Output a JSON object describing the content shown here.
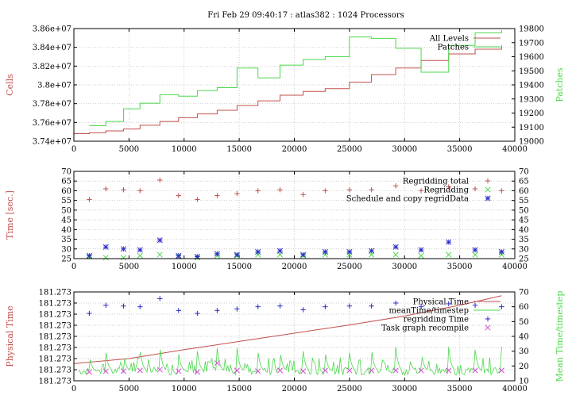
{
  "chart_data": [
    {
      "type": "line",
      "title": "Fri Feb 29 09:40:17 : atlas382 : 1024 Processors",
      "ylabel": "Cells",
      "y2label": "Patches",
      "xlim": [
        0,
        40000
      ],
      "ylim": [
        37400000,
        38600000
      ],
      "y2lim": [
        19000,
        19800
      ],
      "x_ticks": [
        0,
        5000,
        10000,
        15000,
        20000,
        25000,
        30000,
        35000,
        40000
      ],
      "y_ticks": [
        37400000,
        37600000,
        37800000,
        38000000,
        38200000,
        38400000,
        38600000
      ],
      "y_tick_labels": [
        "3.74e+07",
        "3.76e+07",
        "3.78e+07",
        "3.8e+07",
        "3.82e+07",
        "3.84e+07",
        "3.86e+07"
      ],
      "y2_ticks": [
        19000,
        19100,
        19200,
        19300,
        19400,
        19500,
        19600,
        19700,
        19800
      ],
      "legend_position": "top-right",
      "series": [
        {
          "name": "All Levels",
          "axis": "y",
          "color": "#c0504d",
          "step": true,
          "x": [
            0,
            1400,
            2900,
            4500,
            6000,
            7800,
            9500,
            11200,
            13000,
            14800,
            16700,
            18700,
            20800,
            22800,
            25000,
            27000,
            29200,
            31500,
            34000,
            36400,
            38800
          ],
          "y": [
            37480000,
            37490000,
            37510000,
            37530000,
            37570000,
            37610000,
            37650000,
            37690000,
            37730000,
            37780000,
            37830000,
            37890000,
            37930000,
            37960000,
            38030000,
            38110000,
            38180000,
            38260000,
            38330000,
            38380000,
            38420000
          ]
        },
        {
          "name": "Patches",
          "axis": "y2",
          "color": "#4cd84c",
          "step": true,
          "x": [
            1400,
            2900,
            4500,
            6000,
            7800,
            9500,
            11200,
            13000,
            14800,
            16700,
            18700,
            20800,
            22800,
            25000,
            27000,
            29200,
            31500,
            34000,
            36400,
            38800
          ],
          "y": [
            19110,
            19140,
            19230,
            19270,
            19330,
            19320,
            19360,
            19380,
            19520,
            19450,
            19540,
            19580,
            19600,
            19740,
            19730,
            19660,
            19490,
            19680,
            19770,
            19790
          ]
        }
      ]
    },
    {
      "type": "scatter",
      "ylabel": "Time [sec.]",
      "xlim": [
        0,
        40000
      ],
      "ylim": [
        25,
        70
      ],
      "x_ticks": [
        0,
        5000,
        10000,
        15000,
        20000,
        25000,
        30000,
        35000,
        40000
      ],
      "y_ticks": [
        25,
        30,
        35,
        40,
        45,
        50,
        55,
        60,
        65,
        70
      ],
      "legend_position": "top-right",
      "series": [
        {
          "name": "Regridding total",
          "marker": "plus",
          "color": "#c0504d",
          "x": [
            1400,
            2900,
            4500,
            6000,
            7800,
            9500,
            11200,
            13000,
            14800,
            16700,
            18700,
            20800,
            22800,
            25000,
            27000,
            29200,
            31500,
            34000,
            36400,
            38800
          ],
          "y": [
            55.5,
            61,
            60.5,
            60,
            65.5,
            57.5,
            55.5,
            57.5,
            58.5,
            60,
            60.5,
            58,
            60,
            60.5,
            60.5,
            62.5,
            60,
            62,
            61,
            60
          ]
        },
        {
          "name": "Regridding",
          "marker": "x",
          "color": "#4cd84c",
          "x": [
            1400,
            2900,
            4500,
            6000,
            7800,
            9500,
            11200,
            13000,
            14800,
            16700,
            18700,
            20800,
            22800,
            25000,
            27000,
            29200,
            31500,
            34000,
            36400,
            38800
          ],
          "y": [
            26,
            25.5,
            25.5,
            26.5,
            27,
            26,
            25.5,
            26.5,
            26.5,
            27,
            27,
            26.5,
            27,
            27,
            27,
            27,
            26.5,
            27,
            27,
            27
          ]
        },
        {
          "name": "Schedule and copy regridData",
          "marker": "star",
          "color": "#2c2ccc",
          "x": [
            1400,
            2900,
            4500,
            6000,
            7800,
            9500,
            11200,
            13000,
            14800,
            16700,
            18700,
            20800,
            22800,
            25000,
            27000,
            29200,
            31500,
            34000,
            36400,
            38800
          ],
          "y": [
            26.5,
            31,
            30,
            29.5,
            34.5,
            26.5,
            26,
            27.5,
            27,
            28.5,
            29,
            27,
            28.5,
            28.5,
            29,
            31,
            29.5,
            33.5,
            29.5,
            28.5
          ]
        }
      ]
    },
    {
      "type": "line",
      "ylabel": "Physical Time",
      "y2label": "Mean Time/timestep",
      "xlim": [
        0,
        40000
      ],
      "y2lim": [
        10,
        70
      ],
      "x_ticks": [
        0,
        5000,
        10000,
        15000,
        20000,
        25000,
        30000,
        35000,
        40000
      ],
      "y_tick_labels": [
        "181.273",
        "181.273",
        "181.273",
        "181.273",
        "181.273",
        "181.273",
        "181.273",
        "181.273",
        "181.273"
      ],
      "y2_ticks": [
        10,
        20,
        30,
        40,
        50,
        60,
        70
      ],
      "legend_position": "top-right",
      "series": [
        {
          "name": "Physical Time",
          "axis": "y",
          "color": "#c0504d",
          "x": [
            0,
            5000,
            10000,
            15000,
            20000,
            25000,
            30000,
            35000,
            38800
          ],
          "y": [
            13.5,
            17.5,
            24.5,
            31,
            37.5,
            44,
            51,
            59.5,
            67
          ]
        },
        {
          "name": "meanTime/timestep",
          "axis": "y2",
          "color": "#4cd84c",
          "spikes": [
            1400,
            2900,
            4500,
            6000,
            7800,
            9500,
            11200,
            13000,
            14800,
            16700,
            18700,
            20800,
            22800,
            25000,
            27000,
            29200,
            31500,
            34000,
            36400,
            38800
          ],
          "spike_heights": [
            28,
            30,
            30,
            32,
            34,
            29,
            30,
            32,
            32,
            30,
            31,
            30,
            30,
            29,
            32,
            33,
            32,
            33,
            31,
            33
          ],
          "base": 16
        },
        {
          "name": "regridding Time",
          "axis": "y2",
          "marker": "plus",
          "color": "#2c2ccc",
          "x": [
            1400,
            2900,
            4500,
            6000,
            7800,
            9500,
            11200,
            13000,
            14800,
            16700,
            18700,
            20800,
            22800,
            25000,
            27000,
            29200,
            31500,
            34000,
            36400,
            38800
          ],
          "y": [
            55.5,
            61,
            60.5,
            60,
            65.5,
            57.5,
            55.5,
            57.5,
            58.5,
            60,
            60.5,
            58,
            60,
            60.5,
            60.5,
            62.5,
            60,
            62,
            61,
            60
          ]
        },
        {
          "name": "Task graph recompile",
          "axis": "y2",
          "marker": "x",
          "color": "#d44cd4",
          "x": [
            1400,
            2900,
            4500,
            6000,
            7800,
            9500,
            11200,
            13000,
            14800,
            16700,
            18700,
            20800,
            22800,
            25000,
            27000,
            29200,
            31500,
            34000,
            36400,
            38800
          ],
          "y": [
            16,
            16.5,
            16.5,
            17,
            17.5,
            16.5,
            16,
            22,
            17,
            16.5,
            17,
            16.5,
            17,
            17,
            17,
            17,
            17,
            17,
            17,
            17
          ]
        }
      ]
    }
  ]
}
